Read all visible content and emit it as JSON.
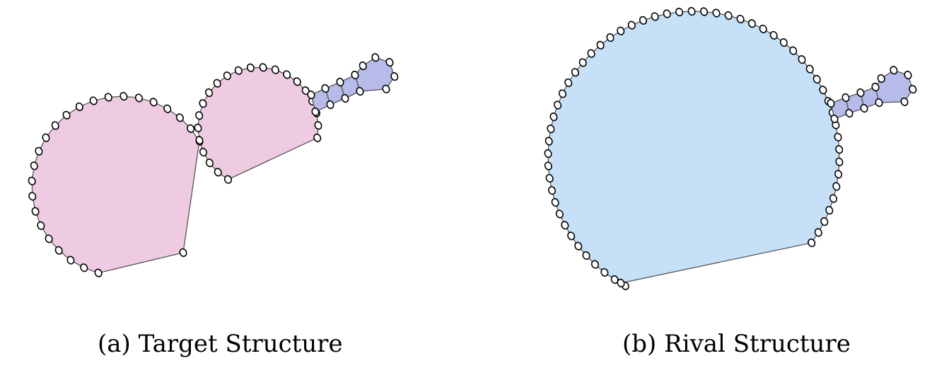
{
  "figures": [
    {
      "id": "a",
      "caption": "(a) Target Structure",
      "loop_color": "#efcbe2",
      "stem_color": "#b7bbe9"
    },
    {
      "id": "b",
      "caption": "(b) Rival Structure",
      "loop_color": "#c6e0f8",
      "stem_color": "#b7bbe9"
    }
  ]
}
